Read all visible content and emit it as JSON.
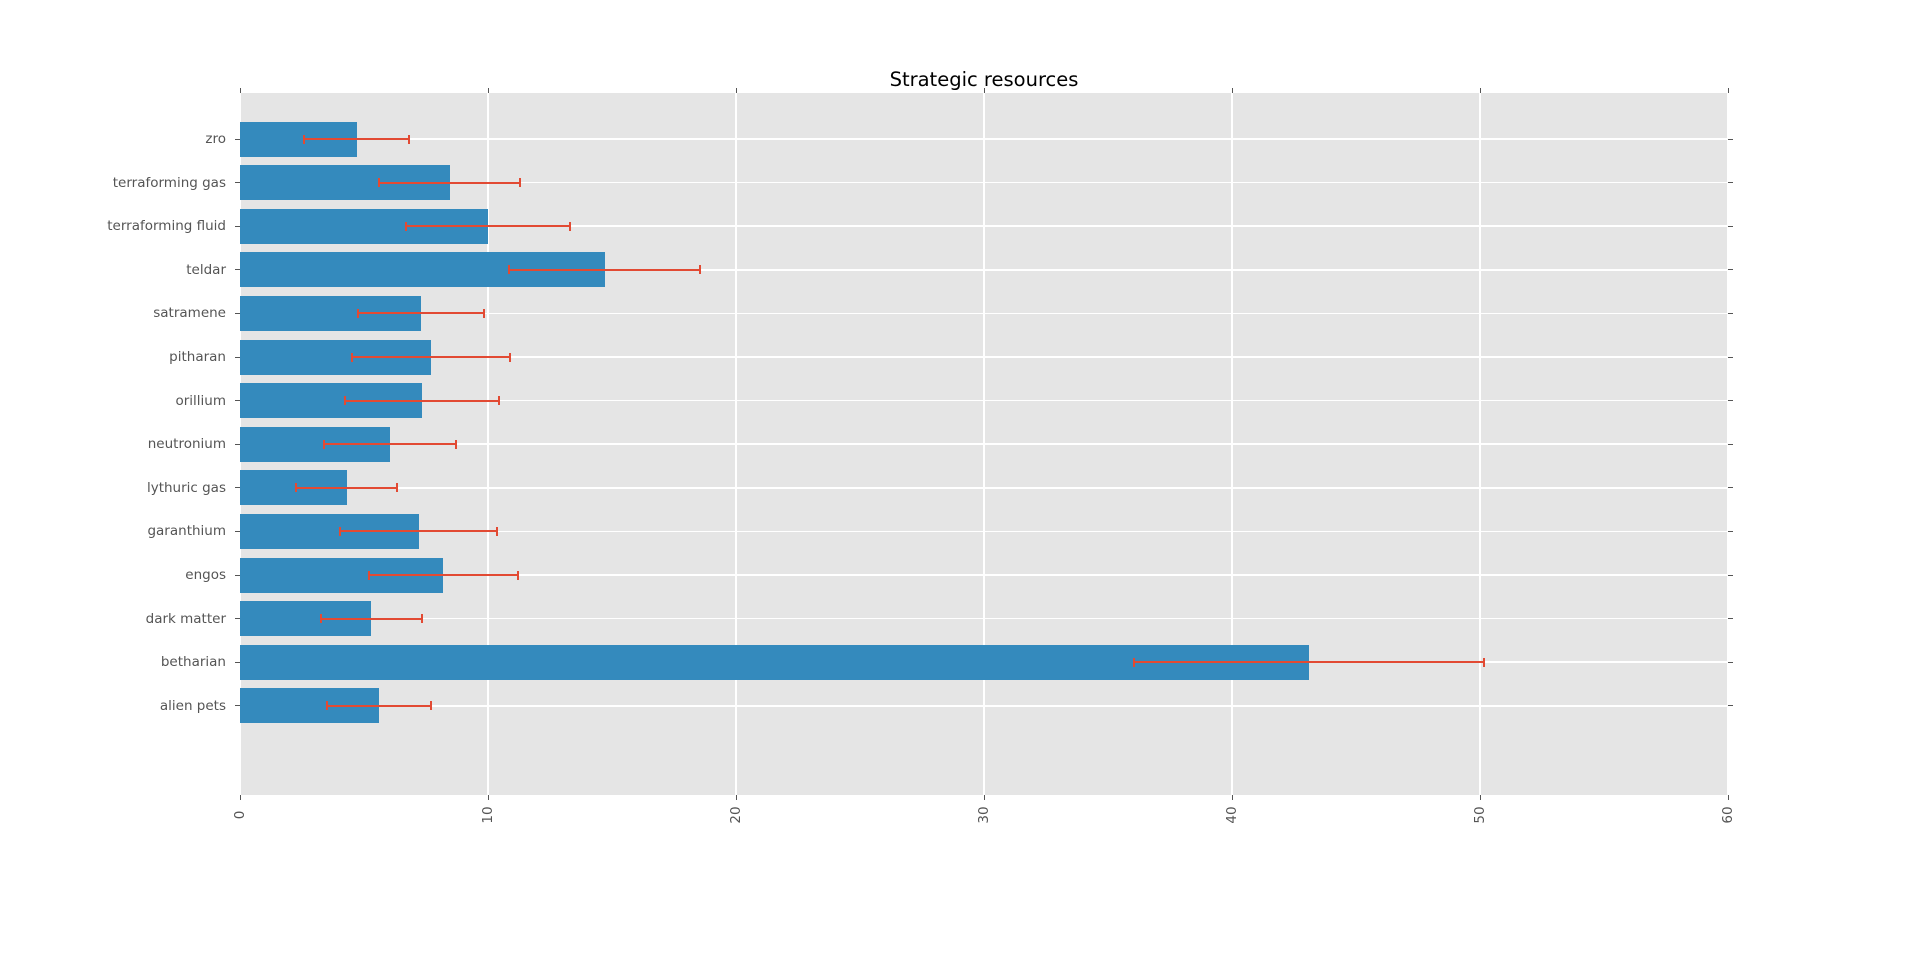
{
  "chart_data": {
    "type": "bar",
    "orientation": "horizontal",
    "title": "Strategic resources",
    "categories_order": "top-to-bottom",
    "categories": [
      "zro",
      "terraforming gas",
      "terraforming fluid",
      "teldar",
      "satramene",
      "pitharan",
      "orillium",
      "neutronium",
      "lythuric gas",
      "garanthium",
      "engos",
      "dark matter",
      "betharian",
      "alien pets"
    ],
    "values": [
      4.7,
      8.45,
      10.0,
      14.7,
      7.3,
      7.7,
      7.35,
      6.05,
      4.3,
      7.2,
      8.2,
      5.3,
      43.1,
      5.6
    ],
    "errors": [
      2.1,
      2.85,
      3.3,
      3.85,
      2.55,
      3.2,
      3.1,
      2.65,
      2.05,
      3.15,
      3.0,
      2.05,
      7.05,
      2.1
    ],
    "error_style": "symmetric, red caps at both ends",
    "xlabel": "",
    "ylabel": "",
    "xlim": [
      0,
      60
    ],
    "xticks": [
      0,
      10,
      20,
      30,
      40,
      50,
      60
    ],
    "xtick_label_rotation": "vertical (read bottom-to-top)",
    "grid": true,
    "legend": null,
    "colors": {
      "bar": "#348ABD",
      "error_bar": "#E24A33",
      "plot_background": "#E5E5E5",
      "figure_background": "#FFFFFF",
      "grid_line": "#FFFFFF",
      "tick_text": "#555555",
      "title_text": "#000000"
    }
  }
}
